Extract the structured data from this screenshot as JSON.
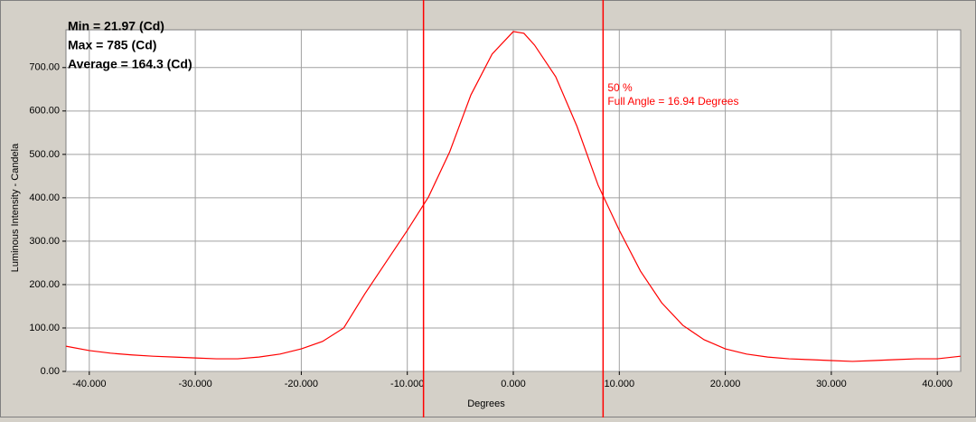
{
  "chart_data": {
    "type": "line",
    "x_label": "Degrees",
    "y_label": "Luminous Intensity - Candela",
    "stats": [
      "Min = 21.97 (Cd)",
      "Max = 785 (Cd)",
      "Average = 164.3 (Cd)"
    ],
    "annotations": [
      "50 %",
      "Full Angle = 16.94 Degrees"
    ],
    "markers": [
      -8.47,
      8.47
    ],
    "marker_color": "#ff0000",
    "grid": true,
    "xlim": [
      -42.2,
      42.2
    ],
    "ylim": [
      0,
      787
    ],
    "xticks": [
      {
        "value": -40,
        "label": "-40.000"
      },
      {
        "value": -30,
        "label": "-30.000"
      },
      {
        "value": -20,
        "label": "-20.000"
      },
      {
        "value": -10,
        "label": "-10.000"
      },
      {
        "value": 0,
        "label": "0.000"
      },
      {
        "value": 10,
        "label": "10.000"
      },
      {
        "value": 20,
        "label": "20.000"
      },
      {
        "value": 30,
        "label": "30.000"
      },
      {
        "value": 40,
        "label": "40.000"
      }
    ],
    "yticks": [
      {
        "value": 0,
        "label": "0.00"
      },
      {
        "value": 100,
        "label": "100.00"
      },
      {
        "value": 200,
        "label": "200.00"
      },
      {
        "value": 300,
        "label": "300.00"
      },
      {
        "value": 400,
        "label": "400.00"
      },
      {
        "value": 500,
        "label": "500.00"
      },
      {
        "value": 600,
        "label": "600.00"
      },
      {
        "value": 700,
        "label": "700.00"
      }
    ],
    "x": [
      -42.2,
      -40,
      -38,
      -36,
      -34,
      -32,
      -30,
      -28,
      -26,
      -24,
      -22,
      -20,
      -18,
      -16,
      -14,
      -12,
      -10,
      -8,
      -6,
      -4,
      -2,
      0,
      1,
      2,
      4,
      6,
      8,
      10,
      12,
      14,
      16,
      18,
      20,
      22,
      24,
      26,
      28,
      30,
      32,
      34,
      36,
      38,
      40,
      42.2
    ],
    "series": [
      {
        "color": "#ff0000",
        "values": [
          58,
          48,
          42,
          38,
          35,
          33,
          31,
          29,
          29,
          33,
          40,
          52,
          69,
          100,
          179,
          252,
          325,
          402,
          506,
          637,
          731,
          783,
          779,
          752,
          679,
          565,
          429,
          325,
          231,
          158,
          106,
          73,
          52,
          40,
          33,
          29,
          27,
          25,
          23,
          25,
          27,
          29,
          29,
          35
        ]
      }
    ]
  }
}
